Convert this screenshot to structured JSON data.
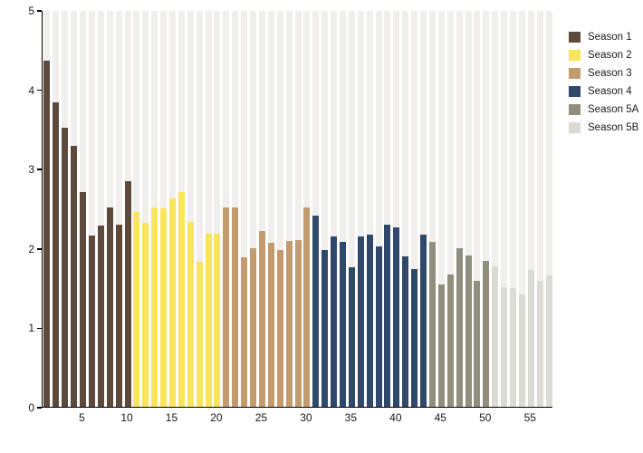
{
  "chart_data": {
    "type": "bar",
    "title": "",
    "xlabel": "",
    "ylabel": "",
    "ylim": [
      0,
      5
    ],
    "yticks": [
      0,
      1,
      2,
      3,
      4,
      5
    ],
    "xticks": [
      5,
      10,
      15,
      20,
      25,
      30,
      35,
      40,
      45,
      50,
      55
    ],
    "x_unit": "episode_number",
    "total_bars": 57,
    "grid": false,
    "background_stripes": true,
    "legend_position": "top-right",
    "series": [
      {
        "name": "Season 1",
        "color": "#5d4a3c",
        "start": 1,
        "values": [
          4.36,
          3.84,
          3.52,
          3.29,
          2.7,
          2.16,
          2.28,
          2.51,
          2.3,
          2.84
        ]
      },
      {
        "name": "Season 2",
        "color": "#f8e55b",
        "start": 11,
        "values": [
          2.45,
          2.32,
          2.51,
          2.5,
          2.63,
          2.71,
          2.33,
          1.83,
          2.18,
          2.18
        ]
      },
      {
        "name": "Season 3",
        "color": "#c29b6e",
        "start": 21,
        "values": [
          2.51,
          2.51,
          1.88,
          2.0,
          2.21,
          2.07,
          1.98,
          2.09,
          2.1,
          2.51
        ]
      },
      {
        "name": "Season 4",
        "color": "#30486a",
        "start": 31,
        "values": [
          2.41,
          1.98,
          2.15,
          2.08,
          1.76,
          2.15,
          2.17,
          2.02,
          2.3,
          2.26,
          1.9,
          1.74,
          2.17
        ]
      },
      {
        "name": "Season 5A",
        "color": "#928e7d",
        "start": 44,
        "values": [
          2.08,
          1.54,
          1.67,
          2.0,
          1.91,
          1.59,
          1.84
        ]
      },
      {
        "name": "Season 5B",
        "color": "#dcdad5",
        "start": 51,
        "values": [
          1.77,
          1.51,
          1.5,
          1.42,
          1.72,
          1.59,
          1.65
        ]
      }
    ],
    "colors": {
      "stripe": "#f0efed",
      "axis": "#000000",
      "text": "#1a1a1a"
    }
  }
}
